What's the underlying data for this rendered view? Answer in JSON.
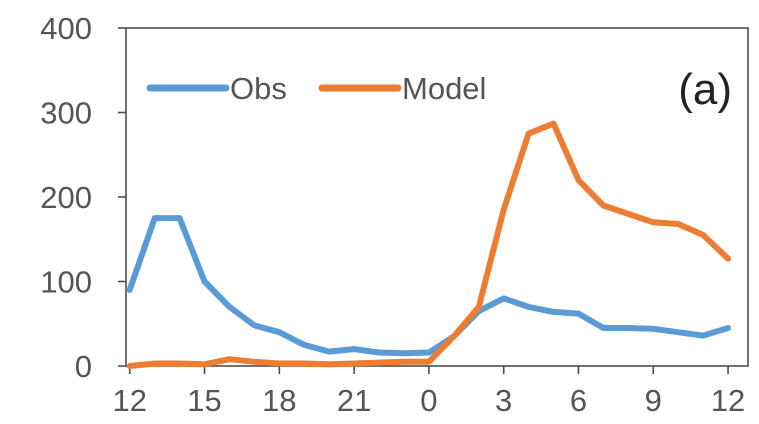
{
  "chart_data": {
    "type": "line",
    "title": "",
    "panel_label": "(a)",
    "xlabel": "",
    "ylabel": "",
    "x_ticks": [
      "12",
      "15",
      "18",
      "21",
      "0",
      "3",
      "6",
      "9",
      "12"
    ],
    "x": [
      12,
      13,
      14,
      15,
      16,
      17,
      18,
      19,
      20,
      21,
      22,
      23,
      24,
      25,
      26,
      27,
      28,
      29,
      30,
      31,
      32,
      33,
      34,
      35,
      36
    ],
    "xlim": [
      11.85,
      36.8
    ],
    "ylim": [
      0,
      400
    ],
    "y_ticks": [
      0,
      100,
      200,
      300,
      400
    ],
    "grid": false,
    "legend": {
      "placement": "top-left"
    },
    "series": [
      {
        "name": "Obs",
        "color": "#5b9bd5",
        "values": [
          90,
          175,
          175,
          100,
          70,
          48,
          40,
          25,
          17,
          20,
          16,
          15,
          16,
          35,
          65,
          80,
          70,
          64,
          62,
          45,
          45,
          44,
          40,
          36,
          45
        ]
      },
      {
        "name": "Model",
        "color": "#ed7d31",
        "values": [
          0,
          3,
          3,
          2,
          8,
          5,
          3,
          3,
          2,
          3,
          4,
          5,
          5,
          35,
          70,
          185,
          275,
          287,
          220,
          190,
          180,
          170,
          168,
          155,
          127
        ]
      }
    ]
  }
}
